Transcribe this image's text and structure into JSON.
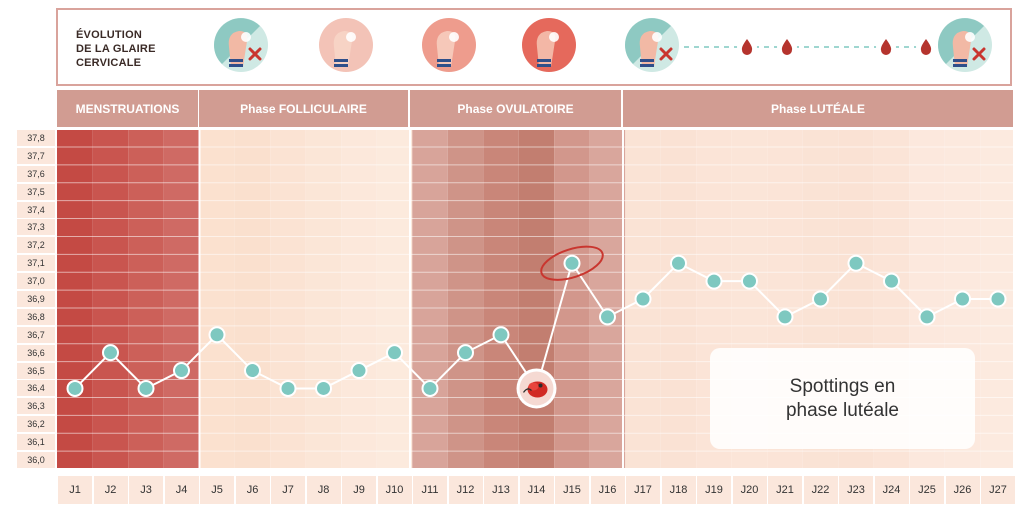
{
  "glaire": {
    "label_lines": [
      "ÉVOLUTION",
      "DE LA GLAIRE",
      "CERVICALE"
    ],
    "icons": [
      "dry-hand-cross-icon",
      "sticky-fingers-icon",
      "creamy-fingers-icon",
      "stretchy-fingers-icon",
      "dry-hand-cross-icon",
      "blood-drop-icon",
      "blood-drop-icon",
      "blood-drop-icon",
      "blood-drop-icon",
      "dry-hand-cross-icon"
    ]
  },
  "phases": [
    {
      "label": "MENSTRUATIONS",
      "start": 1,
      "end": 4
    },
    {
      "label": "Phase FOLLICULAIRE",
      "start": 5,
      "end": 10
    },
    {
      "label": "Phase OVULATOIRE",
      "start": 11,
      "end": 16
    },
    {
      "label": "Phase LUTÉALE",
      "start": 17,
      "end": 27
    }
  ],
  "annotation": {
    "line1": "Spottings en",
    "line2": "phase lutéale"
  },
  "colors": {
    "line": "#ffffff",
    "point": "#7ec8c0",
    "menstruation": "#c9544d",
    "follicular": "#f9dbc7",
    "ovulatory": "#c98578",
    "luteal": "#f9e1d3",
    "phase_header": "#d19c92",
    "ovulation_circle": "#c9362f"
  },
  "chart_data": {
    "type": "line",
    "title": "",
    "xlabel": "",
    "ylabel": "",
    "categories": [
      "J1",
      "J2",
      "J3",
      "J4",
      "J5",
      "J6",
      "J7",
      "J8",
      "J9",
      "J10",
      "J11",
      "J12",
      "J13",
      "J14",
      "J15",
      "J16",
      "J17",
      "J18",
      "J19",
      "J20",
      "J21",
      "J22",
      "J23",
      "J24",
      "J25",
      "J26",
      "J27"
    ],
    "y_ticks": [
      "37,8",
      "37,7",
      "37,6",
      "37,5",
      "37,4",
      "37,3",
      "37,2",
      "37,1",
      "37,0",
      "36,9",
      "36,8",
      "36,7",
      "36,6",
      "36,5",
      "36,4",
      "36,3",
      "36,2",
      "36,1",
      "36,0"
    ],
    "ylim": [
      36.0,
      37.8
    ],
    "series": [
      {
        "values": [
          36.4,
          36.6,
          36.4,
          36.5,
          36.7,
          36.5,
          36.4,
          36.4,
          36.5,
          36.6,
          36.4,
          36.6,
          36.7,
          36.4,
          37.1,
          36.8,
          36.9,
          37.1,
          37.0,
          37.0,
          36.8,
          36.9,
          37.1,
          37.0,
          36.8,
          36.9,
          36.9
        ]
      }
    ],
    "special_points": {
      "ovulation_day": "J15",
      "spotting_day": "J14"
    }
  }
}
